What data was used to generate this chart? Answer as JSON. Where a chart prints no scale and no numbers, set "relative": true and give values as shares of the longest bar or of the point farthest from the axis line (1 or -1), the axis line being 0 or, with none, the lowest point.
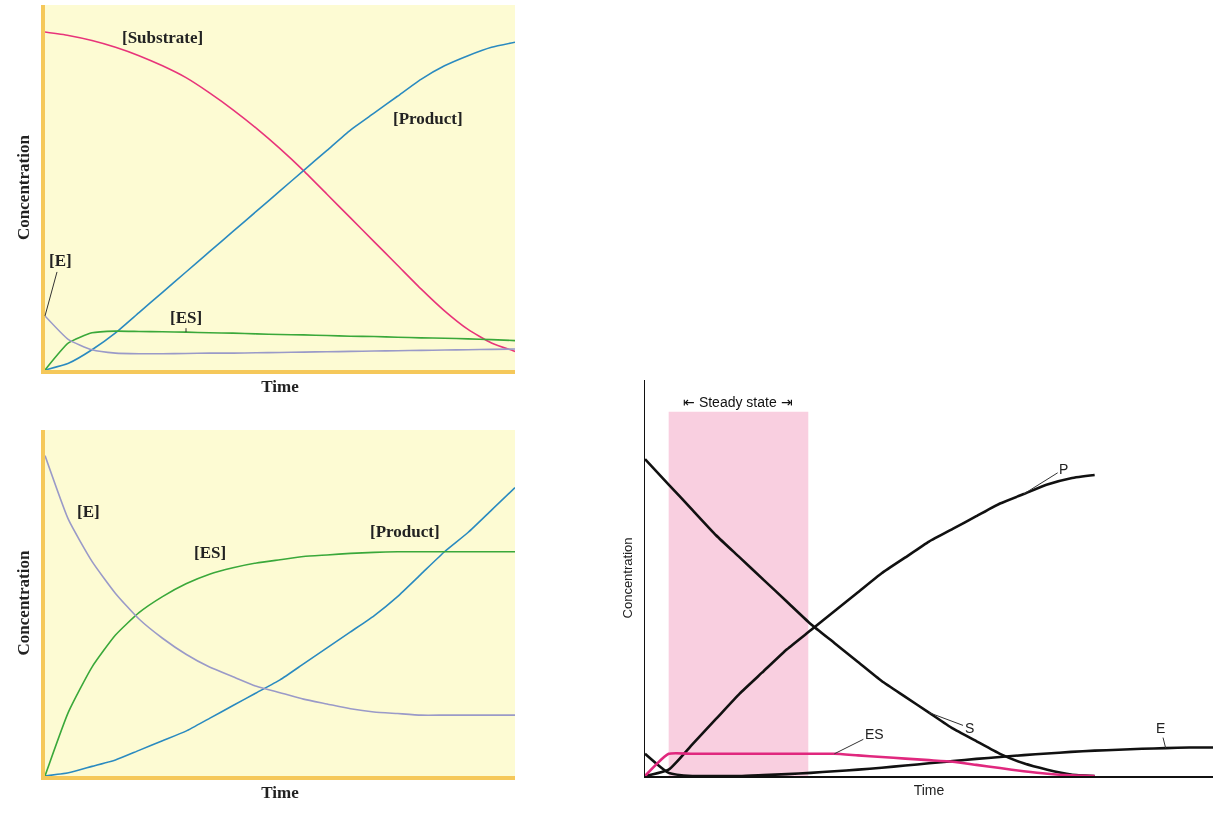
{
  "chart_data": [
    {
      "type": "line",
      "relative": true,
      "xlabel": "Time",
      "ylabel": "Concentration",
      "categories": [
        null,
        null,
        null,
        null,
        null,
        null,
        null,
        null,
        null,
        null,
        null,
        null,
        null,
        null,
        null,
        null,
        null,
        null,
        null,
        null,
        null
      ],
      "series": [
        {
          "name": "[Substrate]",
          "color": "#e8347a",
          "values": [
            1.0,
            0.99,
            0.975,
            0.955,
            0.93,
            0.9,
            0.865,
            0.82,
            0.77,
            0.715,
            0.655,
            0.59,
            0.52,
            0.45,
            0.38,
            0.31,
            0.24,
            0.175,
            0.12,
            0.08,
            0.055
          ]
        },
        {
          "name": "[Product]",
          "color": "#2a8ac0",
          "values": [
            0,
            0.02,
            0.06,
            0.11,
            0.17,
            0.23,
            0.29,
            0.35,
            0.41,
            0.47,
            0.53,
            0.59,
            0.65,
            0.71,
            0.76,
            0.81,
            0.86,
            0.9,
            0.93,
            0.955,
            0.97
          ]
        },
        {
          "name": "[ES]",
          "color": "#3aa83a",
          "values": [
            0,
            0.08,
            0.11,
            0.115,
            0.114,
            0.113,
            0.112,
            0.11,
            0.109,
            0.107,
            0.105,
            0.104,
            0.102,
            0.1,
            0.099,
            0.097,
            0.095,
            0.094,
            0.092,
            0.09,
            0.087
          ]
        },
        {
          "name": "[E]",
          "color": "#9a9ac8",
          "values": [
            0.16,
            0.09,
            0.06,
            0.05,
            0.048,
            0.048,
            0.049,
            0.05,
            0.05,
            0.051,
            0.052,
            0.053,
            0.054,
            0.055,
            0.056,
            0.057,
            0.058,
            0.059,
            0.06,
            0.061,
            0.062
          ]
        }
      ]
    },
    {
      "type": "line",
      "relative": true,
      "xlabel": "Time",
      "ylabel": "Concentration",
      "categories": [
        null,
        null,
        null,
        null,
        null,
        null,
        null,
        null,
        null,
        null,
        null,
        null,
        null,
        null,
        null,
        null,
        null,
        null,
        null,
        null,
        null
      ],
      "series": [
        {
          "name": "[Product]",
          "color": "#2a8ac0",
          "values": [
            0,
            0.01,
            0.03,
            0.05,
            0.08,
            0.11,
            0.14,
            0.18,
            0.22,
            0.26,
            0.3,
            0.35,
            0.4,
            0.45,
            0.5,
            0.56,
            0.63,
            0.7,
            0.76,
            0.83,
            0.9
          ]
        },
        {
          "name": "[ES]",
          "color": "#3aa83a",
          "values": [
            0,
            0.2,
            0.34,
            0.44,
            0.51,
            0.56,
            0.6,
            0.63,
            0.65,
            0.665,
            0.675,
            0.685,
            0.69,
            0.695,
            0.698,
            0.7,
            0.7,
            0.7,
            0.7,
            0.7,
            0.7
          ]
        },
        {
          "name": "[E]",
          "color": "#9a9ac8",
          "values": [
            1.0,
            0.8,
            0.67,
            0.57,
            0.49,
            0.43,
            0.38,
            0.34,
            0.31,
            0.28,
            0.26,
            0.24,
            0.225,
            0.21,
            0.2,
            0.195,
            0.19,
            0.19,
            0.19,
            0.19,
            0.19
          ]
        }
      ]
    },
    {
      "type": "line",
      "relative": true,
      "xlabel": "Time",
      "ylabel": "Concentration",
      "categories": [
        null,
        null,
        null,
        null,
        null,
        null,
        null,
        null,
        null,
        null,
        null,
        null,
        null,
        null,
        null,
        null,
        null,
        null,
        null,
        null,
        null,
        null,
        null,
        null,
        null
      ],
      "annotations": [
        "⇤ Steady state ⇥"
      ],
      "series": [
        {
          "name": "P",
          "color": "#111111",
          "values": [
            0,
            0.02,
            0.1,
            0.18,
            0.26,
            0.33,
            0.4,
            0.46,
            0.52,
            0.58,
            0.64,
            0.69,
            0.74,
            0.78,
            0.82,
            0.86,
            0.89,
            0.92,
            0.94,
            0.95,
            null,
            null,
            null,
            null,
            null
          ]
        },
        {
          "name": "S",
          "color": "#111111",
          "values": [
            1.0,
            0.92,
            0.84,
            0.76,
            0.69,
            0.62,
            0.55,
            0.48,
            0.42,
            0.36,
            0.3,
            0.25,
            0.2,
            0.15,
            0.11,
            0.07,
            0.04,
            0.02,
            0.005,
            0,
            null,
            null,
            null,
            null,
            null
          ]
        },
        {
          "name": "E",
          "color": "#111111",
          "values": [
            0.07,
            0.01,
            0,
            0,
            0,
            0.003,
            0.006,
            0.01,
            0.015,
            0.02,
            0.026,
            0.033,
            0.04,
            0.047,
            0.054,
            0.06,
            0.066,
            0.071,
            0.076,
            0.08,
            0.083,
            0.086,
            0.088,
            0.09,
            0.09
          ]
        },
        {
          "name": "ES",
          "color": "#e0287e",
          "values": [
            0,
            0.07,
            0.07,
            0.07,
            0.07,
            0.07,
            0.07,
            0.07,
            0.07,
            0.065,
            0.06,
            0.055,
            0.05,
            0.045,
            0.035,
            0.025,
            0.015,
            0.007,
            0.002,
            0,
            null,
            null,
            null,
            null,
            null
          ]
        }
      ]
    }
  ]
}
